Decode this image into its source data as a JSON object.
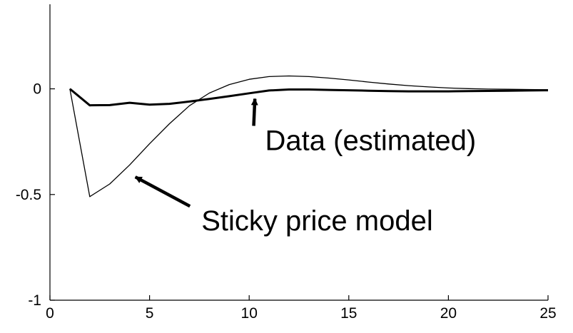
{
  "chart_data": {
    "type": "line",
    "title": "",
    "xlabel": "",
    "ylabel": "",
    "xlim": [
      0,
      25
    ],
    "ylim": [
      -1,
      0.4
    ],
    "grid": false,
    "legend": "none",
    "x_ticks": [
      0,
      5,
      10,
      15,
      20,
      25
    ],
    "x_tick_labels": [
      "0",
      "5",
      "10",
      "15",
      "20",
      "25"
    ],
    "y_ticks": [
      -1,
      -0.5,
      0
    ],
    "y_tick_labels": [
      "-1",
      "-0.5",
      "0"
    ],
    "series": [
      {
        "key": "data",
        "style": "thick",
        "color": "#000000",
        "x": [
          1,
          2,
          3,
          4,
          5,
          6,
          7,
          8,
          9,
          10,
          11,
          12,
          13,
          14,
          15,
          16,
          17,
          18,
          19,
          20,
          21,
          22,
          23,
          24,
          25
        ],
        "values": [
          0,
          -0.078,
          -0.077,
          -0.066,
          -0.075,
          -0.071,
          -0.06,
          -0.048,
          -0.035,
          -0.021,
          -0.008,
          -0.003,
          -0.003,
          -0.005,
          -0.007,
          -0.009,
          -0.011,
          -0.012,
          -0.012,
          -0.012,
          -0.011,
          -0.01,
          -0.009,
          -0.008,
          -0.007
        ]
      },
      {
        "key": "model",
        "style": "thin",
        "color": "#000000",
        "x": [
          1,
          2,
          3,
          4,
          5,
          6,
          7,
          8,
          9,
          10,
          11,
          12,
          13,
          14,
          15,
          16,
          17,
          18,
          19,
          20,
          21,
          22,
          23,
          24,
          25
        ],
        "values": [
          0,
          -0.51,
          -0.45,
          -0.36,
          -0.26,
          -0.165,
          -0.08,
          -0.02,
          0.02,
          0.045,
          0.058,
          0.061,
          0.058,
          0.051,
          0.042,
          0.032,
          0.023,
          0.015,
          0.009,
          0.004,
          0.001,
          -0.001,
          -0.002,
          -0.003,
          -0.004
        ]
      }
    ],
    "annotations": [
      {
        "text": "Data (estimated)",
        "target": [
          10,
          -0.02
        ],
        "text_anchor_data": [
          10.8,
          -0.29
        ]
      },
      {
        "text": "Sticky price model",
        "target": [
          4,
          -0.39
        ],
        "text_anchor_data": [
          7.6,
          -0.67
        ]
      }
    ]
  }
}
